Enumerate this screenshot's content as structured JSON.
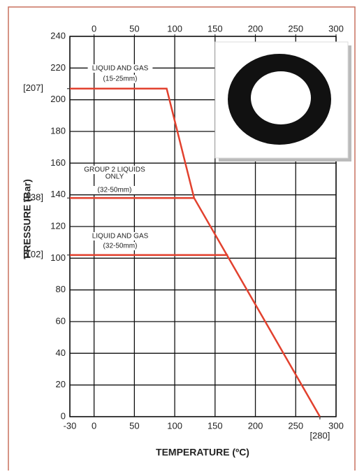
{
  "chart_data": {
    "type": "line",
    "xlabel": "TEMPERATURE (ºC)",
    "ylabel": "PRESSURE (Bar)",
    "xlim": [
      -30,
      300
    ],
    "ylim": [
      0,
      240
    ],
    "xticks": [
      -30,
      0,
      50,
      100,
      150,
      200,
      250,
      300
    ],
    "x2ticks": [
      0,
      50,
      100,
      150,
      200,
      250,
      300
    ],
    "yticks": [
      0,
      20,
      40,
      60,
      80,
      100,
      120,
      140,
      160,
      180,
      200,
      220,
      240
    ],
    "ymarks": [
      {
        "value": 207,
        "label": "[207]"
      },
      {
        "value": 138,
        "label": "[138]"
      },
      {
        "value": 102,
        "label": "[102]"
      }
    ],
    "xmarks": [
      {
        "value": 280,
        "label": "[280]"
      }
    ],
    "grid": true,
    "series": [
      {
        "color": "#e2412e",
        "x": [
          -30,
          90,
          124,
          280
        ],
        "values": [
          207,
          207,
          138,
          0
        ]
      },
      {
        "color": "#e2412e",
        "x": [
          -30,
          124
        ],
        "values": [
          138,
          138
        ]
      },
      {
        "color": "#e2412e",
        "x": [
          -30,
          166
        ],
        "values": [
          102,
          102
        ]
      }
    ],
    "annotations": [
      {
        "lines": [
          "LIQUID AND GAS",
          "(15-25mm)"
        ]
      },
      {
        "lines": [
          "GROUP 2 LIQUIDS",
          "ONLY",
          "(32-50mm)"
        ]
      },
      {
        "lines": [
          "LIQUID AND GAS",
          "(32-50mm)"
        ]
      }
    ]
  }
}
